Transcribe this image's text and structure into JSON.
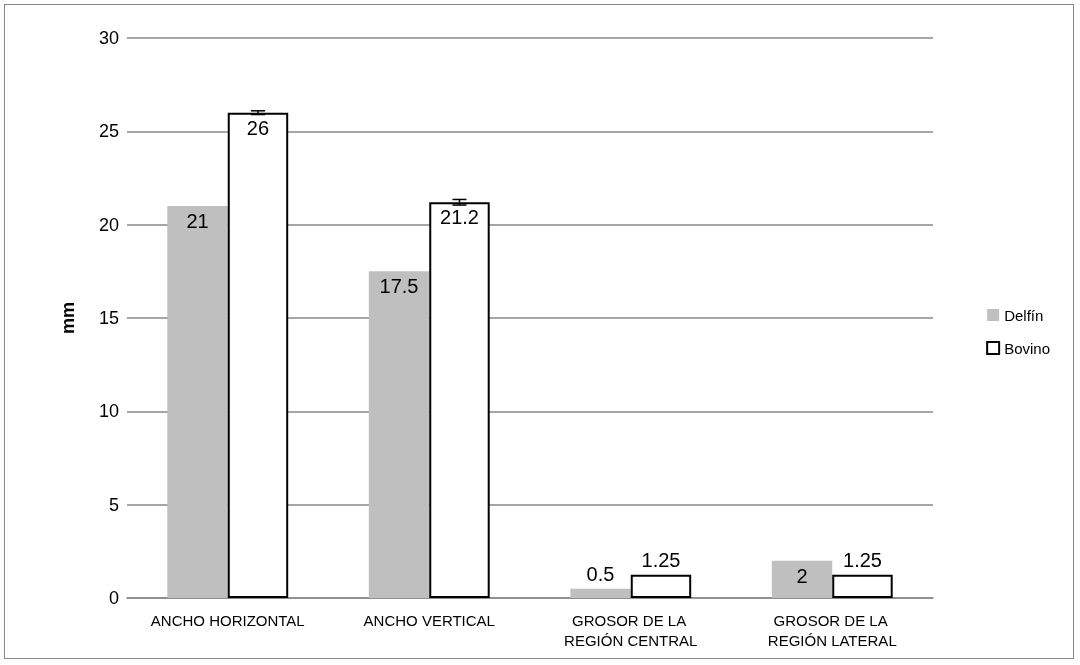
{
  "chart_data": {
    "type": "bar",
    "ylabel": "mm",
    "categories": [
      "ANCHO HORIZONTAL",
      "ANCHO VERTICAL",
      "GROSOR DE LA REGIÓN CENTRAL",
      "GROSOR DE LA REGIÓN LATERAL"
    ],
    "series": [
      {
        "name": "Delfín",
        "color": "#bfbfbf",
        "values": [
          21,
          17.5,
          0.5,
          2
        ]
      },
      {
        "name": "Bovino",
        "color": "#ffffff",
        "values": [
          26,
          21.2,
          1.25,
          1.25
        ],
        "errors": [
          0.1,
          0.15,
          null,
          null
        ]
      }
    ],
    "ylim": [
      0,
      30
    ],
    "yticks": [
      0,
      5,
      10,
      15,
      20,
      25,
      30
    ],
    "grid": "y",
    "legend": "right",
    "data_labels": true
  }
}
